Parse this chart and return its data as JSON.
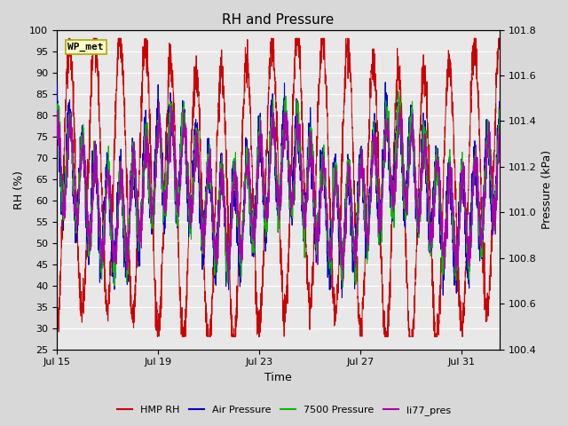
{
  "title": "RH and Pressure",
  "xlabel": "Time",
  "ylabel_left": "RH (%)",
  "ylabel_right": "Pressure (kPa)",
  "ylim_left": [
    25,
    100
  ],
  "ylim_right": [
    100.4,
    101.8
  ],
  "yticks_left": [
    25,
    30,
    35,
    40,
    45,
    50,
    55,
    60,
    65,
    70,
    75,
    80,
    85,
    90,
    95,
    100
  ],
  "yticks_right": [
    100.4,
    100.6,
    100.8,
    101.0,
    101.2,
    101.4,
    101.6,
    101.8
  ],
  "xtick_labels": [
    "Jul 15",
    "Jul 19",
    "Jul 23",
    "Jul 27",
    "Jul 31"
  ],
  "xtick_positions": [
    0,
    4,
    8,
    12,
    16
  ],
  "xlim": [
    0,
    17.5
  ],
  "watermark": "WP_met",
  "colors": {
    "HMP RH": "#cc0000",
    "Air Pressure": "#0000cc",
    "7500 Pressure": "#00bb00",
    "li77_pres": "#aa00aa"
  },
  "background_color": "#e8e8e8",
  "fig_bg_color": "#d8d8d8",
  "grid_color": "#ffffff",
  "title_fontsize": 11,
  "label_fontsize": 9,
  "tick_fontsize": 8,
  "seed": 42,
  "n_points": 3000,
  "t_end": 17.5
}
